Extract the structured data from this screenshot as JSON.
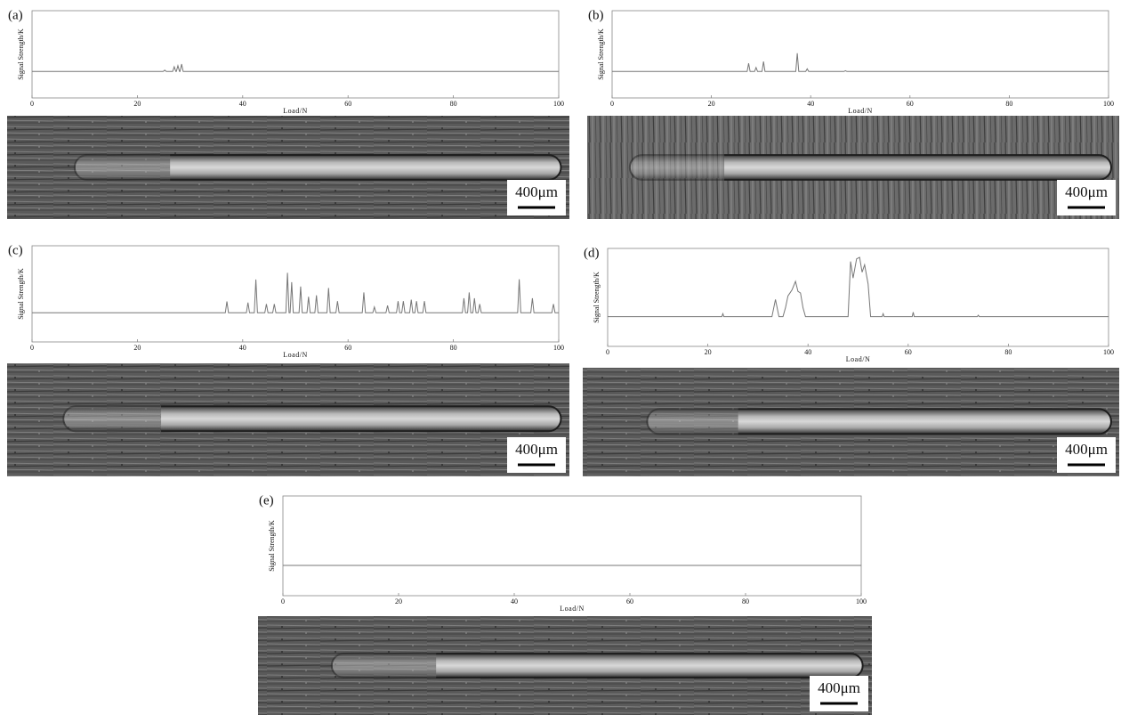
{
  "chart_data": [
    {
      "type": "line",
      "title": "(a)",
      "ylabel": "Signal Strength/K",
      "xlabel": "Load/N",
      "annotation": "400μm",
      "color": "#777777",
      "x": [
        0,
        24.9,
        25.2,
        25.5,
        26.7,
        27,
        27.3,
        27.4,
        27.7,
        28,
        28.1,
        28.4,
        28.7,
        100
      ],
      "values": [
        0,
        0,
        0.05,
        0,
        0,
        0.18,
        0,
        0,
        0.22,
        0,
        0,
        0.28,
        0,
        0
      ],
      "xlim": [
        0,
        100
      ],
      "xticks": [
        0,
        20,
        40,
        60,
        80,
        100
      ],
      "ylim": [
        -1,
        2.3
      ]
    },
    {
      "type": "line",
      "title": "(b)",
      "ylabel": "Signal Strength/K",
      "xlabel": "Load/N",
      "annotation": "400μm",
      "color": "#777777",
      "x": [
        0,
        27.2,
        27.5,
        27.8,
        28.7,
        29,
        29.3,
        30.2,
        30.5,
        30.8,
        37,
        37.3,
        37.6,
        39,
        39.3,
        39.6,
        46.7,
        47,
        47.3,
        100
      ],
      "values": [
        0,
        0,
        0.31,
        0,
        0,
        0.15,
        0,
        0,
        0.38,
        0,
        0,
        0.69,
        0,
        0,
        0.1,
        0,
        0,
        0.03,
        0,
        0
      ],
      "xlim": [
        0,
        100
      ],
      "xticks": [
        0,
        20,
        40,
        60,
        80,
        100
      ],
      "ylim": [
        -1,
        2.3
      ]
    },
    {
      "type": "line",
      "title": "(c)",
      "ylabel": "Signal Strength/K",
      "xlabel": "Load/N",
      "annotation": "400μm",
      "color": "#777777",
      "x": [
        0,
        36.7,
        37,
        37.3,
        40.7,
        41,
        41.3,
        42.2,
        42.5,
        42.8,
        44.2,
        44.5,
        44.8,
        45.7,
        46,
        46.3,
        48.2,
        48.5,
        48.8,
        49,
        49.3,
        49.6,
        50.7,
        51,
        51.3,
        52.2,
        52.5,
        52.8,
        53.7,
        54,
        54.3,
        56,
        56.3,
        56.6,
        57.7,
        58,
        58.3,
        62.7,
        63,
        63.3,
        64.7,
        65,
        65.3,
        67.2,
        67.5,
        67.8,
        69.2,
        69.5,
        69.8,
        70.2,
        70.5,
        70.8,
        71.7,
        72,
        72.3,
        72.7,
        73,
        73.3,
        74.2,
        74.5,
        74.8,
        81.7,
        82,
        82.3,
        82.7,
        83,
        83.3,
        83.7,
        84,
        84.3,
        84.7,
        85,
        85.3,
        92.2,
        92.5,
        92.8,
        94.7,
        95,
        95.3,
        98.7,
        99,
        99.3,
        100
      ],
      "values": [
        0,
        0,
        0.39,
        0,
        0,
        0.35,
        0,
        0,
        1.14,
        0,
        0,
        0.3,
        0,
        0,
        0.3,
        0,
        0,
        1.37,
        0,
        0,
        1.05,
        0,
        0,
        0.9,
        0,
        0,
        0.55,
        0,
        0,
        0.6,
        0,
        0,
        0.85,
        0,
        0,
        0.4,
        0,
        0,
        0.7,
        0,
        0,
        0.2,
        0,
        0,
        0.25,
        0,
        0,
        0.4,
        0,
        0,
        0.4,
        0,
        0,
        0.45,
        0,
        0,
        0.4,
        0,
        0,
        0.4,
        0,
        0,
        0.5,
        0,
        0,
        0.7,
        0,
        0,
        0.5,
        0,
        0,
        0.3,
        0,
        0,
        1.15,
        0,
        0,
        0.5,
        0,
        0,
        0.3,
        0,
        0
      ],
      "xlim": [
        0,
        100
      ],
      "xticks": [
        0,
        20,
        40,
        60,
        80,
        100
      ],
      "ylim": [
        -1,
        2.3
      ]
    },
    {
      "type": "line",
      "title": "(d)",
      "ylabel": "Signal Strength/K",
      "xlabel": "Load/N",
      "annotation": "400μm",
      "color": "#777777",
      "x": [
        0,
        22.8,
        23,
        23.2,
        32.8,
        33.5,
        34.2,
        35,
        35.5,
        36,
        36.8,
        37.5,
        38,
        38.5,
        39,
        39.5,
        48,
        48.5,
        49,
        49.7,
        50.3,
        50.8,
        51.3,
        52,
        52.5,
        54.8,
        55,
        55.2,
        60.8,
        61,
        61.2,
        73.8,
        74,
        74.2,
        100
      ],
      "values": [
        0,
        0,
        0.1,
        0,
        0,
        0.58,
        0,
        0,
        0.3,
        0.7,
        0.9,
        1.19,
        0.85,
        0.8,
        0.3,
        0,
        0,
        1.86,
        1.3,
        1.95,
        2.0,
        1.5,
        1.75,
        1.1,
        0,
        0,
        0.1,
        0,
        0,
        0.15,
        0,
        0,
        0.05,
        0,
        0
      ],
      "xlim": [
        0,
        100
      ],
      "xticks": [
        0,
        20,
        40,
        60,
        80,
        100
      ],
      "ylim": [
        -1,
        2.3
      ]
    },
    {
      "type": "line",
      "title": "(e)",
      "ylabel": "Signal Strength/K",
      "xlabel": "Load/N",
      "annotation": "400μm",
      "color": "#777777",
      "x": [
        0,
        100
      ],
      "values": [
        0,
        0
      ],
      "xlim": [
        0,
        100
      ],
      "xticks": [
        0,
        20,
        40,
        60,
        80,
        100
      ],
      "ylim": [
        -1,
        2.3
      ]
    }
  ]
}
